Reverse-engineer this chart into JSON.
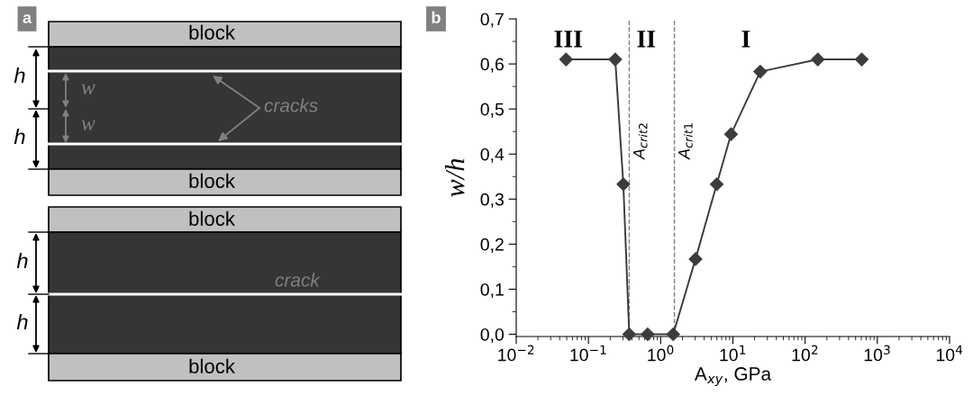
{
  "chart_data": [
    {
      "type": "other",
      "title": "a",
      "annotations": [
        "block",
        "block",
        "block",
        "block",
        "h",
        "h",
        "h",
        "h",
        "w",
        "w",
        "cracks",
        "crack"
      ]
    },
    {
      "type": "line",
      "title": "b",
      "xlabel": "A$_{xy}$, GPa",
      "ylabel": "w/h",
      "log": "x",
      "x": [
        0.049,
        0.235,
        0.304,
        0.367,
        0.66,
        1.49,
        3.04,
        5.97,
        9.42,
        23.9,
        150,
        608
      ],
      "series": [
        {
          "color": "#3c3c3c",
          "values": [
            0.61,
            0.61,
            0.333,
            0.0,
            0.0,
            0.0,
            0.167,
            0.333,
            0.444,
            0.583,
            0.61,
            0.61
          ]
        }
      ],
      "marker": "diamond",
      "line_style": "solid",
      "grid": false,
      "legend": false,
      "xlim": [
        0.01,
        10000
      ],
      "xticks": [
        {
          "value": 0.01,
          "label": "10$^{−2}$"
        },
        {
          "value": 0.1,
          "label": "10$^{−1}$"
        },
        {
          "value": 1,
          "label": "10$^{0}$"
        },
        {
          "value": 10,
          "label": "10$^{1}$"
        },
        {
          "value": 100,
          "label": "10$^{2}$"
        },
        {
          "value": 1000,
          "label": "10$^{3}$"
        },
        {
          "value": 10000,
          "label": "10$^{4}$"
        }
      ],
      "ylim": [
        -0.005,
        0.7
      ],
      "yticks": [
        {
          "value": 0.0,
          "label": "0,0"
        },
        {
          "value": 0.1,
          "label": "0,1"
        },
        {
          "value": 0.2,
          "label": "0,2"
        },
        {
          "value": 0.3,
          "label": "0,3"
        },
        {
          "value": 0.4,
          "label": "0,4"
        },
        {
          "value": 0.5,
          "label": "0,5"
        },
        {
          "value": 0.6,
          "label": "0,6"
        },
        {
          "value": 0.7,
          "label": "0,7"
        }
      ],
      "ref_lines": [
        {
          "axis": "x",
          "value": 0.367,
          "label": "A$_{crit2}$",
          "color": "#808080",
          "line_style": "dashed"
        },
        {
          "axis": "x",
          "value": 1.55,
          "label": "A$_{crit1}$",
          "color": "#808080",
          "line_style": "dashed"
        }
      ],
      "annotations": [
        "III",
        "II",
        "I"
      ]
    }
  ]
}
